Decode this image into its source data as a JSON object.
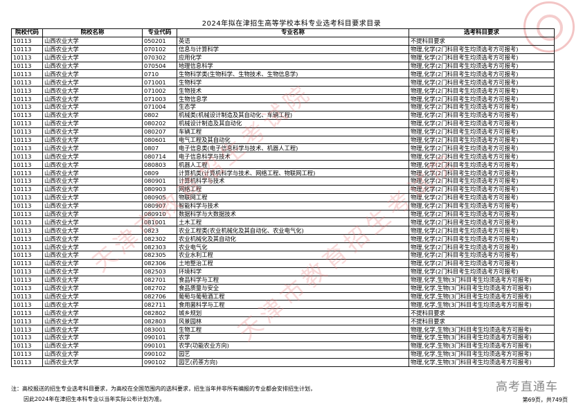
{
  "title": "2024年拟在津招生高等学校本科专业选考科目要求目录",
  "columns": [
    "院校代码",
    "院校名称",
    "专业代码",
    "专业名称",
    "选考科目要求"
  ],
  "rows": [
    [
      "10113",
      "山西农业大学",
      "050201",
      "英语",
      "不提科目要求"
    ],
    [
      "10113",
      "山西农业大学",
      "070102",
      "信息与计算科学",
      "物理,化学(2门科目考生均须选考方可报考)"
    ],
    [
      "10113",
      "山西农业大学",
      "070302",
      "应用化学",
      "物理,化学(2门科目考生均须选考方可报考)"
    ],
    [
      "10113",
      "山西农业大学",
      "070504",
      "地理信息科学",
      "物理,化学(2门科目考生均须选考方可报考)"
    ],
    [
      "10113",
      "山西农业大学",
      "0710",
      "生物科学类(生物科学、生物技术、生物信息学)",
      "物理,化学(2门科目考生均须选考方可报考)"
    ],
    [
      "10113",
      "山西农业大学",
      "071001",
      "生物科学",
      "物理,化学(2门科目考生均须选考方可报考)"
    ],
    [
      "10113",
      "山西农业大学",
      "071002",
      "生物技术",
      "物理,化学(2门科目考生均须选考方可报考)"
    ],
    [
      "10113",
      "山西农业大学",
      "071003",
      "生物信息学",
      "物理,化学(2门科目考生均须选考方可报考)"
    ],
    [
      "10113",
      "山西农业大学",
      "071004",
      "生态学",
      "物理,化学(2门科目考生均须选考方可报考)"
    ],
    [
      "10113",
      "山西农业大学",
      "0802",
      "机械类(机械设计制造及其自动化、车辆工程)",
      "物理,化学(2门科目考生均须选考方可报考)"
    ],
    [
      "10113",
      "山西农业大学",
      "080202",
      "机械设计制造及其自动化",
      "物理,化学(2门科目考生均须选考方可报考)"
    ],
    [
      "10113",
      "山西农业大学",
      "080207",
      "车辆工程",
      "物理,化学(2门科目考生均须选考方可报考)"
    ],
    [
      "10113",
      "山西农业大学",
      "080601",
      "电气工程及其自动化",
      "物理,化学(2门科目考生均须选考方可报考)"
    ],
    [
      "10113",
      "山西农业大学",
      "0807",
      "电子信息类(电子信息科学与技术、机器人工程)",
      "物理,化学(2门科目考生均须选考方可报考)"
    ],
    [
      "10113",
      "山西农业大学",
      "080714",
      "电子信息科学与技术",
      "物理,化学(2门科目考生均须选考方可报考)"
    ],
    [
      "10113",
      "山西农业大学",
      "080803",
      "机器人工程",
      "物理,化学(2门科目考生均须选考方可报考)"
    ],
    [
      "10113",
      "山西农业大学",
      "0809",
      "计算机类(计算机科学与技术、网络工程、物联网工程)",
      "物理,化学(2门科目考生均须选考方可报考)"
    ],
    [
      "10113",
      "山西农业大学",
      "080901",
      "计算机科学与技术",
      "物理,化学(2门科目考生均须选考方可报考)"
    ],
    [
      "10113",
      "山西农业大学",
      "080903",
      "网络工程",
      "物理,化学(2门科目考生均须选考方可报考)"
    ],
    [
      "10113",
      "山西农业大学",
      "080905",
      "物联网工程",
      "物理,化学(2门科目考生均须选考方可报考)"
    ],
    [
      "10113",
      "山西农业大学",
      "080907",
      "智能科学与技术",
      "物理,化学(2门科目考生均须选考方可报考)"
    ],
    [
      "10113",
      "山西农业大学",
      "080910",
      "数据科学与大数据技术",
      "物理,化学(2门科目考生均须选考方可报考)"
    ],
    [
      "10113",
      "山西农业大学",
      "081001",
      "土木工程",
      "物理,化学(2门科目考生均须选考方可报考)"
    ],
    [
      "10113",
      "山西农业大学",
      "0823",
      "农业工程类(农业机械化及其自动化、农业电气化)",
      "物理,化学(2门科目考生均须选考方可报考)"
    ],
    [
      "10113",
      "山西农业大学",
      "082302",
      "农业机械化及其自动化",
      "物理,化学(2门科目考生均须选考方可报考)"
    ],
    [
      "10113",
      "山西农业大学",
      "082303",
      "农业电气化",
      "物理,化学(2门科目考生均须选考方可报考)"
    ],
    [
      "10113",
      "山西农业大学",
      "082305",
      "农业水利工程",
      "物理,化学(2门科目考生均须选考方可报考)"
    ],
    [
      "10113",
      "山西农业大学",
      "082306",
      "土地整治工程",
      "物理,化学(2门科目考生均须选考方可报考)"
    ],
    [
      "10113",
      "山西农业大学",
      "082503",
      "环境科学",
      "物理,化学(2门科目考生均须选考方可报考)"
    ],
    [
      "10113",
      "山西农业大学",
      "082701",
      "食品科学与工程",
      "物理,化学,生物(3门科目考生均须选考方可报考)"
    ],
    [
      "10113",
      "山西农业大学",
      "082702",
      "食品质量与安全",
      "物理,化学,生物(3门科目考生均须选考方可报考)"
    ],
    [
      "10113",
      "山西农业大学",
      "082706",
      "葡萄与葡萄酒工程",
      "物理,化学,生物(3门科目考生均须选考方可报考)"
    ],
    [
      "10113",
      "山西农业大学",
      "082711",
      "食用菌科学与工程",
      "物理,化学,生物(3门科目考生均须选考方可报考)"
    ],
    [
      "10113",
      "山西农业大学",
      "082802",
      "城乡规划",
      "不提科目要求"
    ],
    [
      "10113",
      "山西农业大学",
      "082803",
      "风景园林",
      "不提科目要求"
    ],
    [
      "10113",
      "山西农业大学",
      "083001",
      "生物工程",
      "物理,化学,生物(3门科目考生均须选考方可报考)"
    ],
    [
      "10113",
      "山西农业大学",
      "090101",
      "农学",
      "物理,化学,生物(3门科目考生均须选考方可报考)"
    ],
    [
      "10113",
      "山西农业大学",
      "090101",
      "农学(功能农业方向)",
      "物理,化学,生物(3门科目考生均须选考方可报考)"
    ],
    [
      "10113",
      "山西农业大学",
      "090102",
      "园艺",
      "物理,化学,生物(3门科目考生均须选考方可报考)"
    ],
    [
      "10113",
      "山西农业大学",
      "090102",
      "园艺(药茶方向)",
      "物理,化学,生物(3门科目考生均须选考方可报考)"
    ]
  ],
  "notes": {
    "line1": "注：高校报送的招生专业选考科目要求，为高校在全国范围内的选科要求，招生当年并非所有编报的专业都会安排招生计划，",
    "line2": "因此2024年在津招生本科专业以当年实际公布计划为准。"
  },
  "page_info": "第69页，共749页",
  "watermark": {
    "text": "天津市教育招生考试院",
    "brand": "高考直通车",
    "seal_color": "#dc5a5a"
  }
}
